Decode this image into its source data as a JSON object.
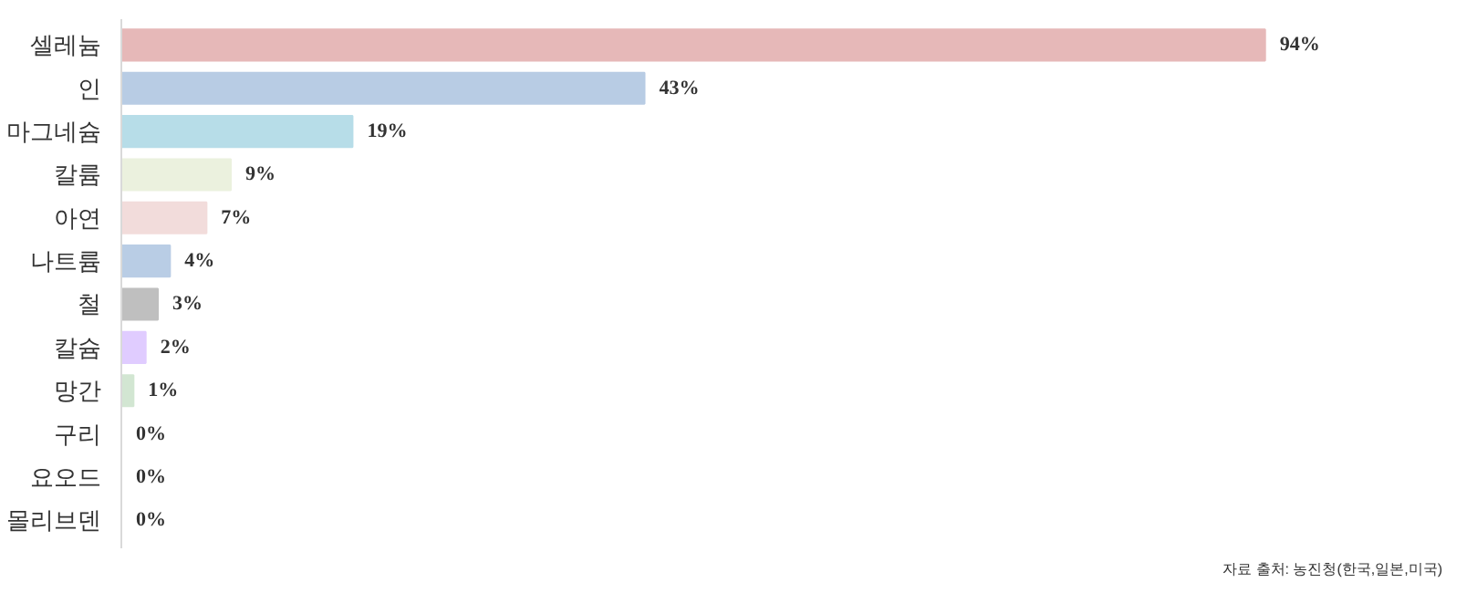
{
  "chart_data": {
    "type": "bar",
    "orientation": "horizontal",
    "categories": [
      "셀레늄",
      "인",
      "마그네슘",
      "칼륨",
      "아연",
      "나트륨",
      "철",
      "칼슘",
      "망간",
      "구리",
      "요오드",
      "몰리브덴"
    ],
    "values": [
      94,
      43,
      19,
      9,
      7,
      4,
      3,
      2,
      1,
      0,
      0,
      0
    ],
    "value_labels": [
      "94%",
      "43%",
      "19%",
      "9%",
      "7%",
      "4%",
      "3%",
      "2%",
      "1%",
      "0%",
      "0%",
      "0%"
    ],
    "colors": [
      "#e6b8b8",
      "#b8cce4",
      "#b7dde8",
      "#ebf1de",
      "#f2dcdb",
      "#b9cde5",
      "#bfbfbf",
      "#e0ccff",
      "#d2e6d2",
      "#4f81bd",
      "#c0c0c0",
      "#c0c0c0"
    ],
    "annotations": [
      "자료 출처: 농진청(한국,일본,미국)"
    ],
    "grid": false
  }
}
